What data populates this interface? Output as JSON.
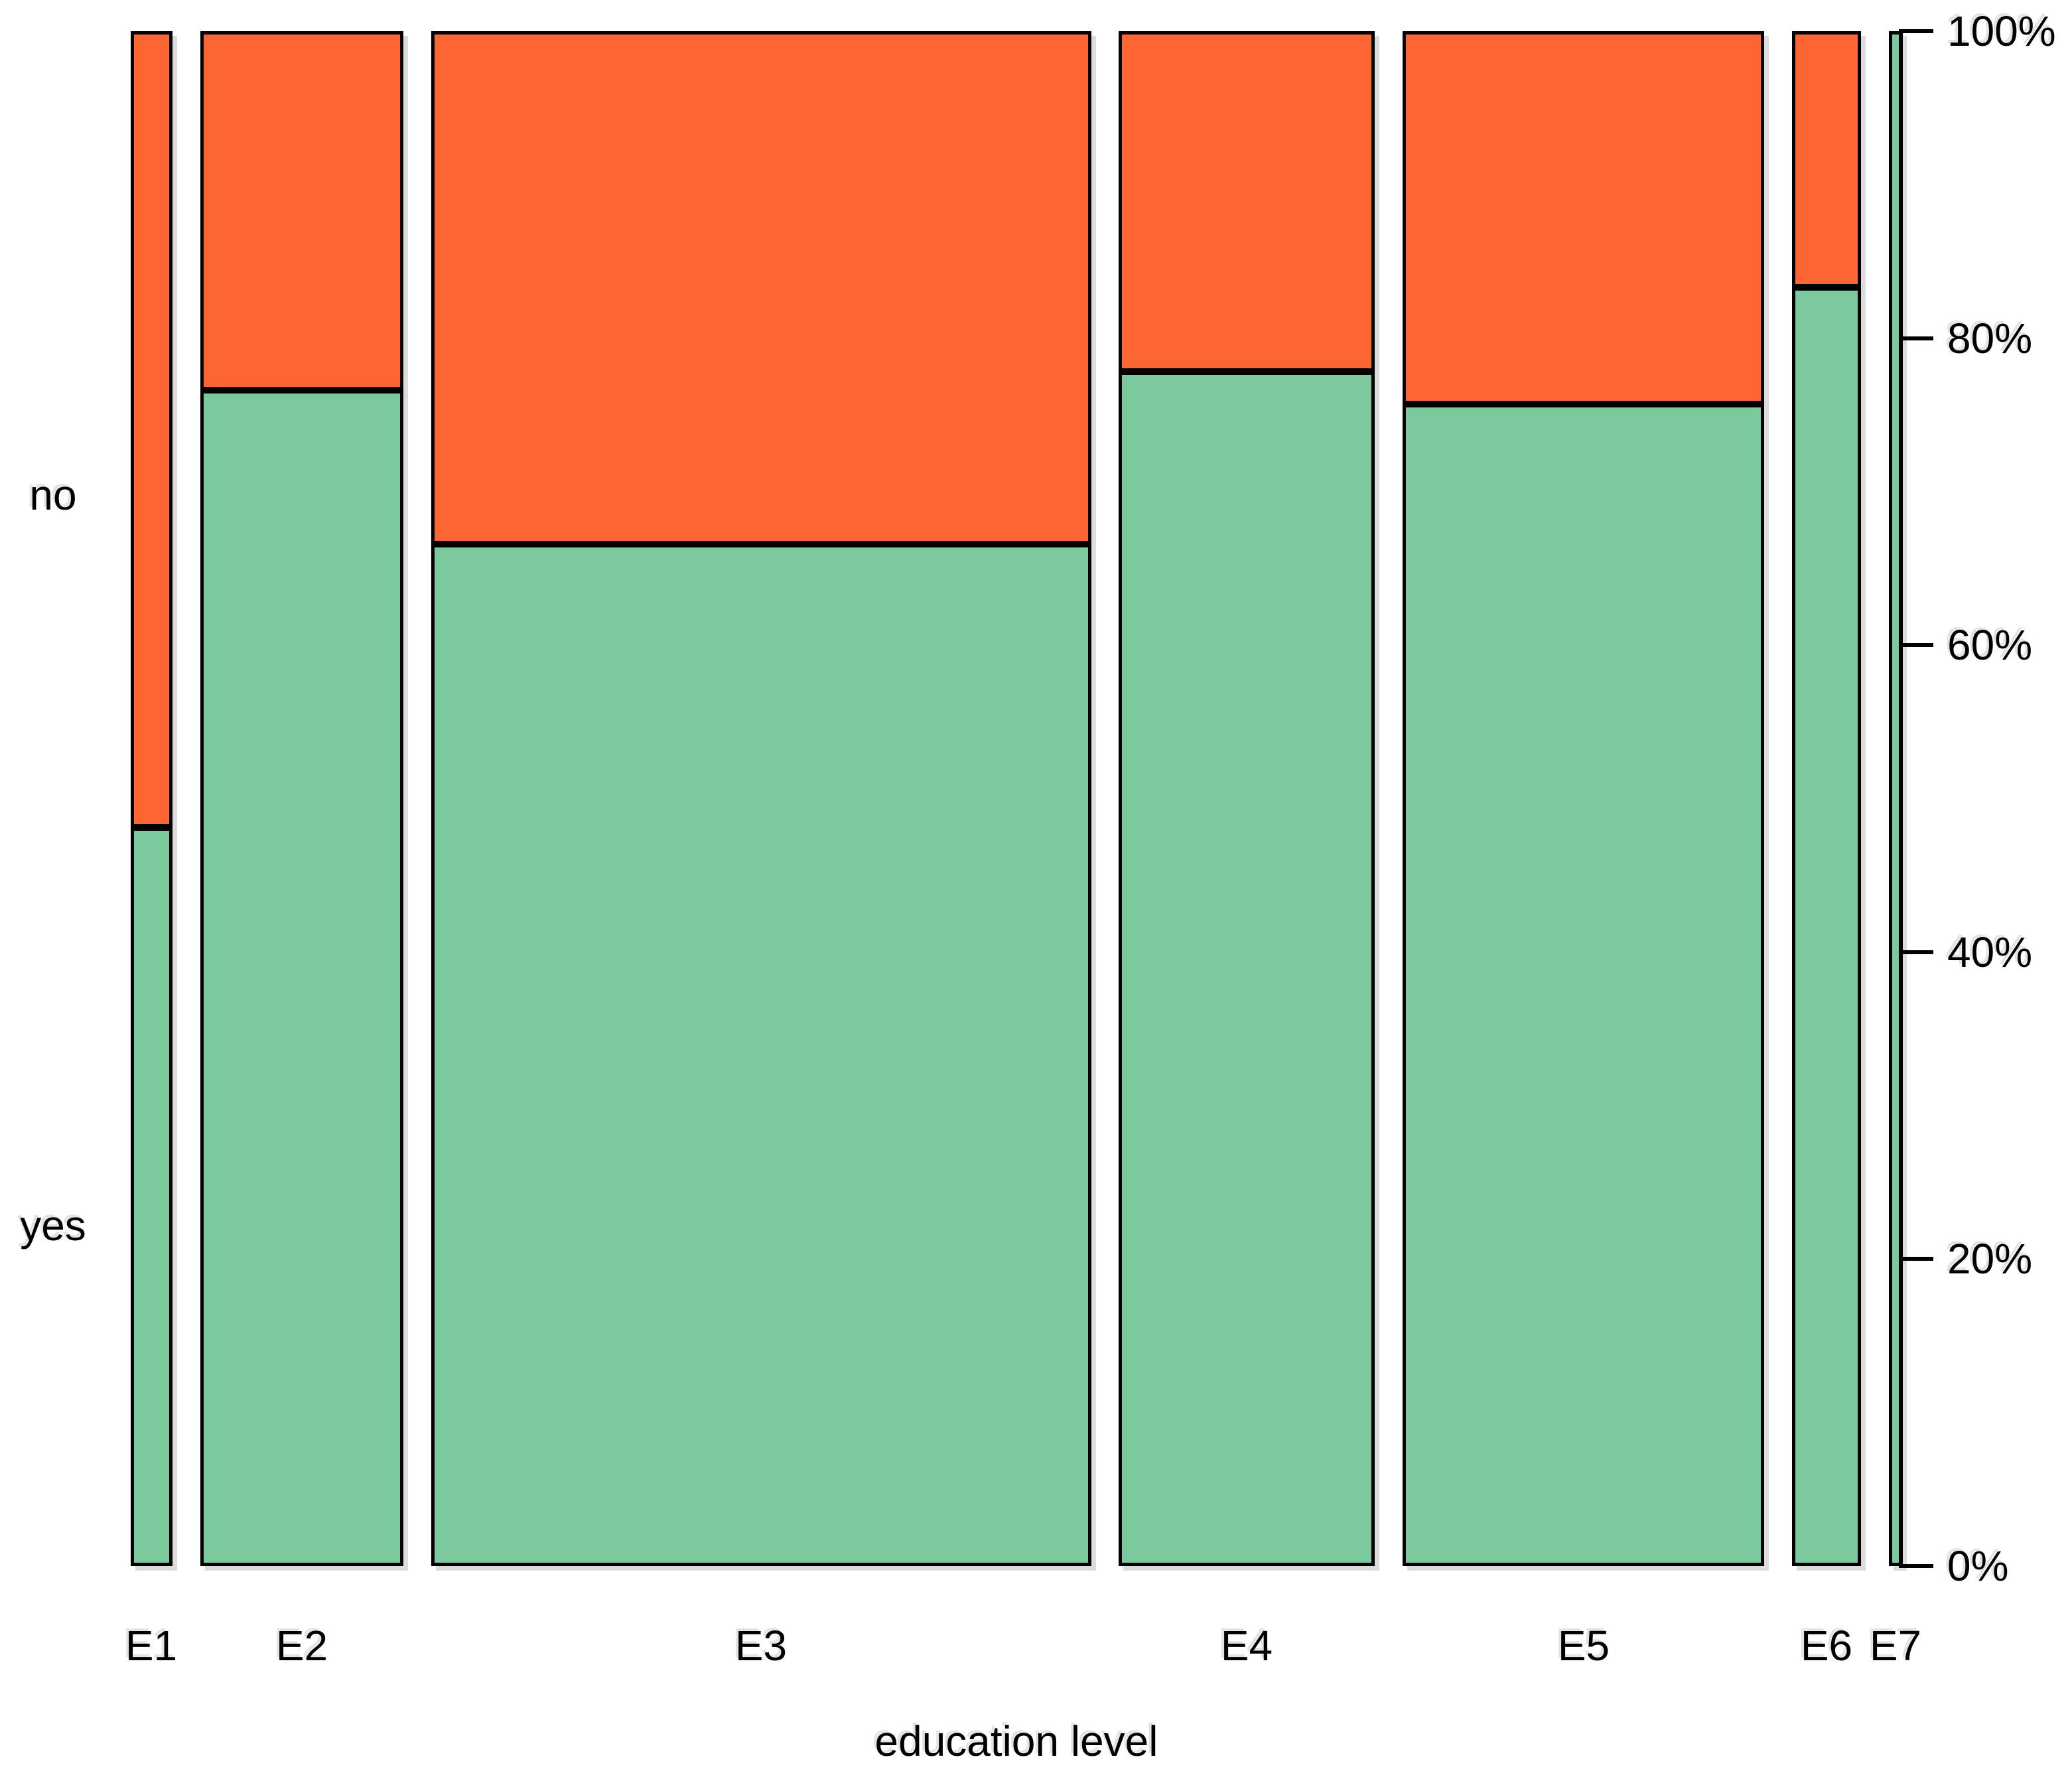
{
  "figure": {
    "background": "#ffffff"
  },
  "chart_data": {
    "type": "mosaic",
    "title": "",
    "xlabel": "education level",
    "ylabel": "",
    "x_categories": [
      "E1",
      "E2",
      "E3",
      "E4",
      "E5",
      "E6",
      "E7"
    ],
    "y_categories": [
      "yes",
      "no"
    ],
    "column_width_fractions": [
      0.026,
      0.1265,
      0.4113,
      0.1596,
      0.2253,
      0.043,
      0.0083
    ],
    "series": [
      {
        "name": "yes",
        "color": "#7CC99E",
        "values": [
          0.481,
          0.766,
          0.666,
          0.778,
          0.757,
          0.833,
          1.0
        ]
      },
      {
        "name": "no",
        "color": "#FD6632",
        "values": [
          0.519,
          0.234,
          0.334,
          0.222,
          0.243,
          0.167,
          0.0
        ]
      }
    ],
    "right_axis": {
      "side": "right",
      "ticks": [
        {
          "label": "0%",
          "value": 0.0
        },
        {
          "label": "20%",
          "value": 0.2
        },
        {
          "label": "40%",
          "value": 0.4
        },
        {
          "label": "60%",
          "value": 0.6
        },
        {
          "label": "80%",
          "value": 0.8
        },
        {
          "label": "100%",
          "value": 1.0
        }
      ]
    },
    "left_labels": [
      {
        "text": "no",
        "y_fraction_from_top": 0.302
      },
      {
        "text": "yes",
        "y_fraction_from_top": 0.778
      }
    ],
    "grid": false,
    "legend_position": "none",
    "border_color": "#000000"
  }
}
